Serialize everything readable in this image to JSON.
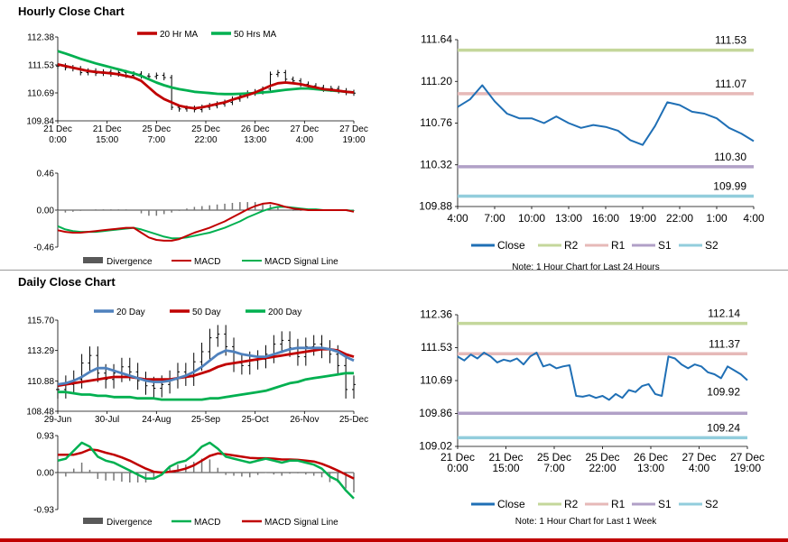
{
  "sections": {
    "hourly_title": "Hourly Close Chart",
    "daily_title": "Daily Close Chart"
  },
  "chart_data": [
    {
      "id": "hourly_price",
      "type": "line",
      "title": "Hourly Close Chart",
      "ylim": [
        109.84,
        112.38
      ],
      "yticks": [
        "112.38",
        "111.53",
        "110.69",
        "109.84"
      ],
      "xticks": [
        [
          "21 Dec",
          "0:00"
        ],
        [
          "21 Dec",
          "15:00"
        ],
        [
          "25 Dec",
          "7:00"
        ],
        [
          "25 Dec",
          "22:00"
        ],
        [
          "26 Dec",
          "13:00"
        ],
        [
          "27 Dec",
          "4:00"
        ],
        [
          "27 Dec",
          "19:00"
        ]
      ],
      "legend": [
        "20 Hr MA",
        "50 Hrs MA"
      ],
      "colors": {
        "price": "#000000",
        "ma20": "#c00000",
        "ma50": "#00b050"
      },
      "price": [
        111.5,
        111.45,
        111.42,
        111.3,
        111.35,
        111.28,
        111.32,
        111.26,
        111.3,
        111.22,
        111.26,
        111.2,
        111.18,
        111.22,
        111.15,
        110.25,
        110.2,
        110.22,
        110.18,
        110.25,
        110.3,
        110.35,
        110.4,
        110.5,
        110.6,
        110.68,
        110.72,
        110.8,
        111.25,
        111.3,
        111.1,
        111.05,
        110.95,
        110.9,
        110.85,
        110.8,
        110.82,
        110.75,
        110.7,
        110.68
      ],
      "ma20": [
        111.55,
        111.5,
        111.45,
        111.4,
        111.35,
        111.32,
        111.3,
        111.28,
        111.25,
        111.2,
        111.15,
        111.05,
        110.85,
        110.65,
        110.5,
        110.4,
        110.3,
        110.25,
        110.22,
        110.25,
        110.3,
        110.35,
        110.4,
        110.48,
        110.55,
        110.62,
        110.7,
        110.8,
        110.9,
        110.98,
        111.0,
        110.98,
        110.95,
        110.9,
        110.85,
        110.8,
        110.78,
        110.75,
        110.72,
        110.7
      ],
      "ma50": [
        111.95,
        111.88,
        111.8,
        111.72,
        111.65,
        111.58,
        111.52,
        111.46,
        111.4,
        111.34,
        111.28,
        111.2,
        111.1,
        111.0,
        110.92,
        110.85,
        110.8,
        110.76,
        110.72,
        110.7,
        110.68,
        110.66,
        110.65,
        110.65,
        110.66,
        110.67,
        110.68,
        110.7,
        110.72,
        110.75,
        110.78,
        110.8,
        110.82,
        110.82,
        110.8,
        110.78,
        110.76,
        110.74,
        110.72,
        110.7
      ]
    },
    {
      "id": "hourly_macd",
      "type": "line",
      "ylim": [
        -0.46,
        0.46
      ],
      "yticks": [
        "0.46",
        "0.00",
        "-0.46"
      ],
      "legend": [
        "Divergence",
        "MACD",
        "MACD Signal Line"
      ],
      "colors": {
        "divergence": "#777777",
        "macd": "#c00000",
        "signal": "#00b050"
      },
      "macd": [
        -0.25,
        -0.27,
        -0.28,
        -0.28,
        -0.27,
        -0.26,
        -0.25,
        -0.24,
        -0.23,
        -0.22,
        -0.22,
        -0.28,
        -0.34,
        -0.37,
        -0.38,
        -0.38,
        -0.36,
        -0.32,
        -0.28,
        -0.25,
        -0.22,
        -0.18,
        -0.14,
        -0.09,
        -0.04,
        0.01,
        0.05,
        0.08,
        0.09,
        0.07,
        0.04,
        0.02,
        0.01,
        0.0,
        0.0,
        0.0,
        0.0,
        0.0,
        0.0,
        -0.02
      ],
      "signal": [
        -0.2,
        -0.24,
        -0.26,
        -0.27,
        -0.27,
        -0.27,
        -0.26,
        -0.25,
        -0.24,
        -0.23,
        -0.22,
        -0.24,
        -0.27,
        -0.3,
        -0.33,
        -0.35,
        -0.35,
        -0.34,
        -0.32,
        -0.3,
        -0.28,
        -0.25,
        -0.22,
        -0.18,
        -0.14,
        -0.09,
        -0.05,
        -0.01,
        0.02,
        0.04,
        0.04,
        0.03,
        0.02,
        0.01,
        0.01,
        0.0,
        0.0,
        0.0,
        0.0,
        -0.01
      ],
      "divergence": [
        -0.05,
        -0.03,
        -0.02,
        -0.01,
        0.0,
        0.01,
        0.01,
        0.01,
        0.01,
        0.01,
        0.0,
        -0.04,
        -0.07,
        -0.07,
        -0.05,
        -0.03,
        -0.01,
        0.02,
        0.04,
        0.05,
        0.06,
        0.07,
        0.08,
        0.09,
        0.1,
        0.1,
        0.1,
        0.09,
        0.07,
        0.03,
        0.0,
        -0.01,
        -0.01,
        -0.01,
        -0.01,
        0.0,
        0.0,
        0.0,
        0.0,
        -0.01
      ]
    },
    {
      "id": "hourly_close_24h",
      "type": "line",
      "ylim": [
        109.88,
        111.64
      ],
      "yticks": [
        "111.64",
        "111.20",
        "110.76",
        "110.32",
        "109.88"
      ],
      "xticks": [
        "4:00",
        "7:00",
        "10:00",
        "13:00",
        "16:00",
        "19:00",
        "22:00",
        "1:00",
        "4:00"
      ],
      "close": [
        110.93,
        111.01,
        111.16,
        110.99,
        110.86,
        110.81,
        110.81,
        110.76,
        110.83,
        110.76,
        110.71,
        110.74,
        110.72,
        110.68,
        110.58,
        110.53,
        110.73,
        110.98,
        110.95,
        110.88,
        110.86,
        110.81,
        110.71,
        110.65,
        110.57
      ],
      "levels": {
        "R2": 111.53,
        "R1": 111.07,
        "S1": 110.3,
        "S2": 109.99
      },
      "level_labels": {
        "R2": "111.53",
        "R1": "111.07",
        "S1": "110.30",
        "S2": "109.99"
      },
      "legend": [
        "Close",
        "R2",
        "R1",
        "S1",
        "S2"
      ],
      "colors": {
        "close": "#1f6fb5",
        "R2": "#c4d79b",
        "R1": "#e6b9b8",
        "S1": "#b1a0c7",
        "S2": "#92cddc"
      },
      "note": "Note: 1 Hour Chart for Last 24 Hours"
    },
    {
      "id": "daily_price",
      "type": "line",
      "title": "Daily Close Chart",
      "ylim": [
        108.48,
        115.7
      ],
      "yticks": [
        "115.70",
        "113.29",
        "110.88",
        "108.48"
      ],
      "xticks": [
        "29-Jun",
        "30-Jul",
        "24-Aug",
        "25-Sep",
        "25-Oct",
        "26-Nov",
        "25-Dec"
      ],
      "legend": [
        "20 Day",
        "50 Day",
        "200 Day"
      ],
      "colors": {
        "price": "#000000",
        "ma20": "#4f81bd",
        "ma50": "#c00000",
        "ma200": "#00b050"
      },
      "price": [
        110.2,
        110.6,
        111.0,
        112.3,
        112.9,
        111.5,
        111.0,
        111.5,
        112.0,
        111.6,
        110.9,
        110.5,
        110.3,
        110.6,
        111.0,
        111.6,
        111.2,
        112.4,
        113.2,
        114.3,
        114.6,
        113.6,
        112.3,
        112.1,
        112.5,
        112.6,
        113.0,
        113.8,
        114.1,
        113.5,
        112.8,
        113.6,
        113.8,
        113.4,
        113.0,
        112.1,
        110.2,
        110.6
      ],
      "ma20": [
        110.6,
        110.7,
        110.9,
        111.2,
        111.6,
        111.9,
        111.9,
        111.7,
        111.5,
        111.3,
        111.1,
        110.9,
        110.8,
        110.8,
        110.9,
        111.1,
        111.3,
        111.6,
        112.0,
        112.5,
        113.0,
        113.3,
        113.2,
        113.0,
        112.9,
        112.8,
        112.8,
        113.0,
        113.2,
        113.4,
        113.5,
        113.5,
        113.5,
        113.5,
        113.4,
        113.2,
        112.8,
        112.5
      ],
      "ma50": [
        110.5,
        110.6,
        110.7,
        110.8,
        110.9,
        111.0,
        111.1,
        111.2,
        111.2,
        111.2,
        111.1,
        111.0,
        111.0,
        111.0,
        111.0,
        111.1,
        111.2,
        111.3,
        111.5,
        111.7,
        112.0,
        112.2,
        112.3,
        112.4,
        112.5,
        112.6,
        112.7,
        112.8,
        112.9,
        113.0,
        113.1,
        113.2,
        113.3,
        113.4,
        113.4,
        113.3,
        113.0,
        112.8
      ],
      "ma200": [
        110.0,
        110.0,
        109.9,
        109.8,
        109.8,
        109.7,
        109.7,
        109.6,
        109.6,
        109.6,
        109.5,
        109.5,
        109.5,
        109.4,
        109.4,
        109.4,
        109.4,
        109.4,
        109.4,
        109.5,
        109.5,
        109.6,
        109.7,
        109.8,
        109.9,
        110.0,
        110.1,
        110.3,
        110.5,
        110.7,
        110.8,
        111.0,
        111.1,
        111.2,
        111.3,
        111.4,
        111.5,
        111.5
      ]
    },
    {
      "id": "daily_macd",
      "type": "line",
      "ylim": [
        -0.93,
        0.93
      ],
      "yticks": [
        "0.93",
        "0.00",
        "-0.93"
      ],
      "legend": [
        "Divergence",
        "MACD",
        "MACD Signal Line"
      ],
      "colors": {
        "divergence": "#777777",
        "macd": "#00b050",
        "signal": "#c00000"
      },
      "macd": [
        0.3,
        0.35,
        0.55,
        0.75,
        0.65,
        0.4,
        0.3,
        0.25,
        0.15,
        0.05,
        -0.05,
        -0.15,
        -0.15,
        -0.05,
        0.15,
        0.25,
        0.3,
        0.45,
        0.65,
        0.75,
        0.6,
        0.4,
        0.35,
        0.3,
        0.25,
        0.3,
        0.35,
        0.3,
        0.25,
        0.3,
        0.3,
        0.25,
        0.2,
        0.1,
        -0.1,
        -0.2,
        -0.45,
        -0.65
      ],
      "signal": [
        0.45,
        0.45,
        0.45,
        0.5,
        0.58,
        0.56,
        0.5,
        0.45,
        0.38,
        0.3,
        0.2,
        0.1,
        0.02,
        0.0,
        0.02,
        0.05,
        0.1,
        0.18,
        0.3,
        0.42,
        0.48,
        0.46,
        0.43,
        0.4,
        0.37,
        0.36,
        0.36,
        0.35,
        0.33,
        0.33,
        0.32,
        0.3,
        0.28,
        0.22,
        0.14,
        0.05,
        -0.05,
        -0.15
      ],
      "divergence": [
        -0.15,
        -0.1,
        0.1,
        0.25,
        0.07,
        -0.16,
        -0.2,
        -0.2,
        -0.23,
        -0.25,
        -0.25,
        -0.25,
        -0.17,
        -0.05,
        0.13,
        0.2,
        0.2,
        0.27,
        0.35,
        0.33,
        0.12,
        -0.06,
        -0.08,
        -0.1,
        -0.12,
        -0.06,
        -0.01,
        -0.05,
        -0.08,
        -0.03,
        -0.02,
        -0.05,
        -0.08,
        -0.12,
        -0.24,
        -0.25,
        -0.4,
        -0.5
      ]
    },
    {
      "id": "daily_close_week",
      "type": "line",
      "ylim": [
        109.02,
        112.36
      ],
      "yticks": [
        "112.36",
        "111.53",
        "110.69",
        "109.86",
        "109.02"
      ],
      "xticks": [
        [
          "21 Dec",
          "0:00"
        ],
        [
          "21 Dec",
          "15:00"
        ],
        [
          "25 Dec",
          "7:00"
        ],
        [
          "25 Dec",
          "22:00"
        ],
        [
          "26 Dec",
          "13:00"
        ],
        [
          "27 Dec",
          "4:00"
        ],
        [
          "27 Dec",
          "19:00"
        ]
      ],
      "close": [
        111.3,
        111.2,
        111.35,
        111.25,
        111.4,
        111.3,
        111.15,
        111.22,
        111.18,
        111.25,
        111.1,
        111.3,
        111.4,
        111.05,
        111.1,
        111.0,
        111.05,
        111.08,
        110.3,
        110.28,
        110.32,
        110.25,
        110.3,
        110.2,
        110.35,
        110.25,
        110.45,
        110.4,
        110.55,
        110.6,
        110.35,
        110.3,
        111.3,
        111.25,
        111.1,
        111.0,
        111.1,
        111.05,
        110.9,
        110.85,
        110.75,
        111.05,
        110.95,
        110.85,
        110.7
      ],
      "levels": {
        "R2": 112.14,
        "R1": 111.37,
        "S1": 109.86,
        "S2": 109.24
      },
      "level_labels": {
        "R2": "112.14",
        "R1": "111.37",
        "S1": "",
        "S2": "109.24"
      },
      "end_label": "109.92",
      "legend": [
        "Close",
        "R2",
        "R1",
        "S1",
        "S2"
      ],
      "colors": {
        "close": "#1f6fb5",
        "R2": "#c4d79b",
        "R1": "#e6b9b8",
        "S1": "#b1a0c7",
        "S2": "#92cddc"
      },
      "note": "Note: 1 Hour Chart for Last 1 Week"
    }
  ]
}
